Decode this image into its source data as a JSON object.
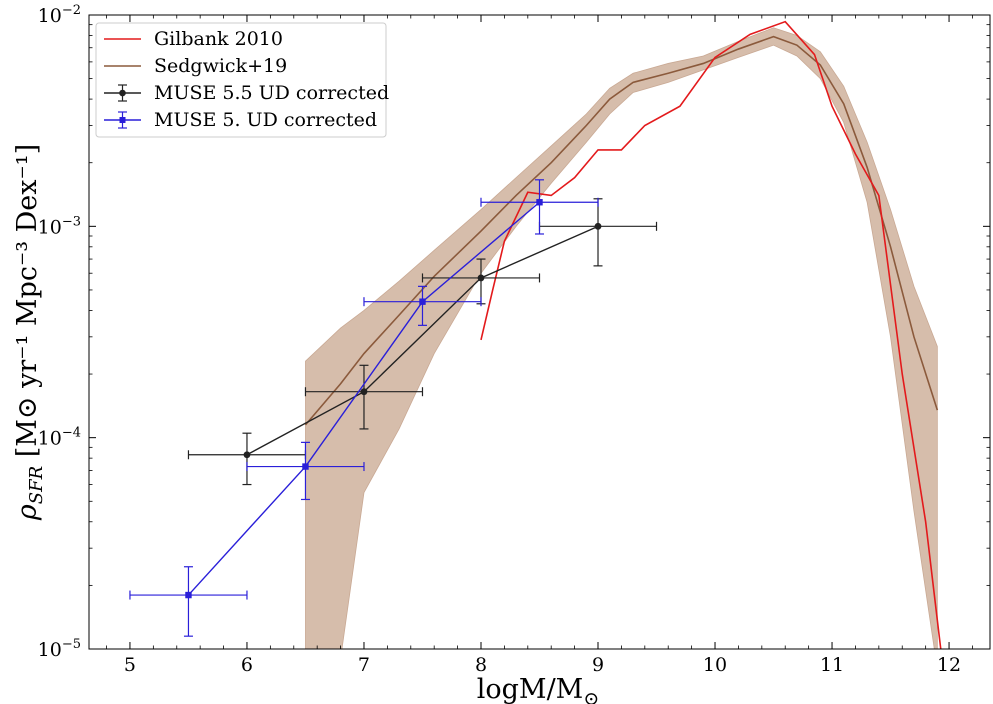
{
  "chart_data": {
    "type": "line",
    "xlabel": "logM/M",
    "xlabel_sub": "⊙",
    "ylabel": "ρ",
    "ylabel_sub": "SFR",
    "ylabel_unit": " [M⊙ yr⁻¹ Mpc⁻³ Dex⁻¹]",
    "xlim": [
      4.65,
      12.35
    ],
    "ylim": [
      1e-05,
      0.01
    ],
    "yscale": "log",
    "xticks": [
      5,
      6,
      7,
      8,
      9,
      10,
      11,
      12
    ],
    "yticks": [
      {
        "value": 1e-05,
        "base": "10",
        "exp": "−5"
      },
      {
        "value": 0.0001,
        "base": "10",
        "exp": "−4"
      },
      {
        "value": 0.001,
        "base": "10",
        "exp": "−3"
      },
      {
        "value": 0.01,
        "base": "10",
        "exp": "−2"
      }
    ],
    "legend": [
      "Gilbank 2010",
      "Sedgwick+19",
      "MUSE 5.5 UD corrected",
      "MUSE 5. UD corrected"
    ],
    "legend_position": "upper-left",
    "colors": {
      "gilbank": "#e31a1c",
      "sedgwick_line": "#8b5a3c",
      "sedgwick_band": "#d2b6a2",
      "muse55": "#222222",
      "muse5": "#2a1fd9"
    },
    "series": {
      "gilbank": {
        "name": "Gilbank 2010",
        "x": [
          8.0,
          8.1,
          8.2,
          8.4,
          8.6,
          8.8,
          9.0,
          9.2,
          9.4,
          9.7,
          10.0,
          10.3,
          10.6,
          10.85,
          11.0,
          11.2,
          11.4,
          11.6,
          11.8,
          11.95
        ],
        "y": [
          0.00029,
          0.0005,
          0.00085,
          0.00145,
          0.0014,
          0.0017,
          0.0023,
          0.0023,
          0.003,
          0.0037,
          0.0063,
          0.0081,
          0.0093,
          0.0065,
          0.0037,
          0.0022,
          0.0014,
          0.0002,
          4e-05,
          8e-06
        ]
      },
      "sedgwick": {
        "name": "Sedgwick+19",
        "x": [
          6.5,
          6.8,
          7.0,
          7.3,
          7.6,
          8.0,
          8.3,
          8.6,
          8.9,
          9.1,
          9.3,
          9.6,
          9.9,
          10.2,
          10.5,
          10.7,
          10.9,
          11.1,
          11.3,
          11.5,
          11.7,
          11.9
        ],
        "y": [
          0.000115,
          0.00018,
          0.00025,
          0.00038,
          0.00058,
          0.00095,
          0.0014,
          0.002,
          0.003,
          0.004,
          0.0048,
          0.0053,
          0.0059,
          0.0069,
          0.0079,
          0.0072,
          0.0058,
          0.0038,
          0.0019,
          0.0008,
          0.0003,
          0.000135
        ],
        "band_upper": [
          0.00023,
          0.00033,
          0.0004,
          0.00055,
          0.00077,
          0.0012,
          0.0017,
          0.0024,
          0.0034,
          0.0045,
          0.0053,
          0.0059,
          0.0064,
          0.0075,
          0.0087,
          0.008,
          0.0067,
          0.0046,
          0.0025,
          0.0012,
          0.00052,
          0.00027
        ],
        "band_lower": [
          8e-06,
          9e-06,
          5.5e-05,
          0.00011,
          0.00025,
          0.0006,
          0.001,
          0.0016,
          0.0025,
          0.0034,
          0.0043,
          0.0048,
          0.0055,
          0.0063,
          0.0072,
          0.0064,
          0.005,
          0.0031,
          0.0013,
          0.0003,
          4.5e-05,
          8e-06
        ]
      },
      "muse55": {
        "name": "MUSE 5.5 UD corrected",
        "x": [
          6.0,
          7.0,
          8.0,
          9.0
        ],
        "y": [
          8.3e-05,
          0.000165,
          0.00057,
          0.001
        ],
        "xerr": [
          [
            0.5,
            0.5
          ],
          [
            0.5,
            0.5
          ],
          [
            0.5,
            0.5
          ],
          [
            0.5,
            0.5
          ]
        ],
        "yerr_low": [
          6e-05,
          0.00011,
          0.00043,
          0.00065
        ],
        "yerr_high": [
          0.000105,
          0.00022,
          0.0007,
          0.00135
        ]
      },
      "muse5": {
        "name": "MUSE 5. UD corrected",
        "x": [
          5.5,
          6.5,
          7.5,
          8.5
        ],
        "y": [
          1.8e-05,
          7.3e-05,
          0.00044,
          0.0013
        ],
        "xerr": [
          [
            0.5,
            0.5
          ],
          [
            0.5,
            0.5
          ],
          [
            0.5,
            0.5
          ],
          [
            0.5,
            0.5
          ]
        ],
        "yerr_low": [
          1.15e-05,
          5.1e-05,
          0.00034,
          0.00092
        ],
        "yerr_high": [
          2.45e-05,
          9.5e-05,
          0.00052,
          0.00166
        ]
      }
    }
  }
}
